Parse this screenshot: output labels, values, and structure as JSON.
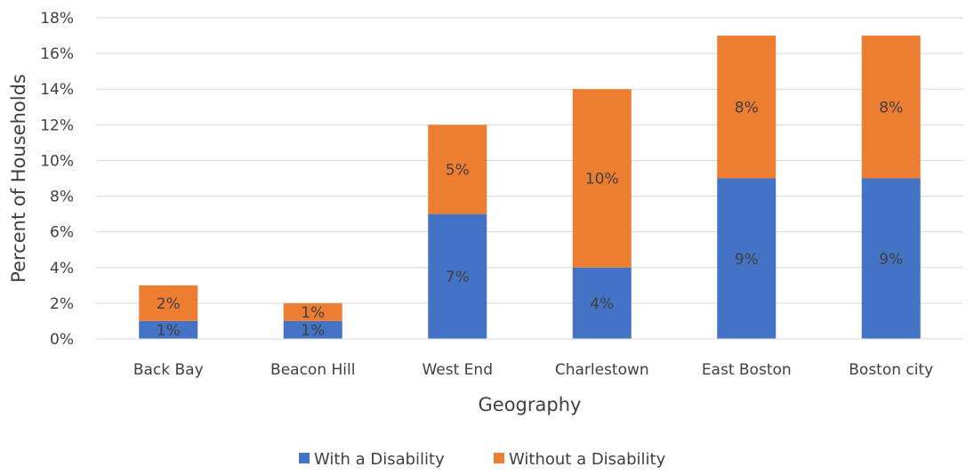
{
  "chart_data": {
    "type": "bar",
    "stacked": true,
    "categories": [
      "Back Bay",
      "Beacon Hill",
      "West End",
      "Charlestown",
      "East Boston",
      "Boston city"
    ],
    "series": [
      {
        "name": "With a Disability",
        "values": [
          1,
          1,
          7,
          4,
          9,
          9
        ],
        "labels": [
          "1%",
          "1%",
          "7%",
          "4%",
          "9%",
          "9%"
        ]
      },
      {
        "name": "Without a Disability",
        "values": [
          2,
          1,
          5,
          10,
          8,
          8
        ],
        "labels": [
          "2%",
          "1%",
          "5%",
          "10%",
          "8%",
          "8%"
        ]
      }
    ],
    "colors": [
      "#4472c4",
      "#ed7d31"
    ],
    "xlabel": "Geography",
    "ylabel": "Percent of Households",
    "ylim": [
      0,
      18
    ],
    "yticks": [
      0,
      2,
      4,
      6,
      8,
      10,
      12,
      14,
      16,
      18
    ],
    "ytick_labels": [
      "0%",
      "2%",
      "4%",
      "6%",
      "8%",
      "10%",
      "12%",
      "14%",
      "16%",
      "18%"
    ],
    "grid": true,
    "legend_position": "bottom"
  }
}
